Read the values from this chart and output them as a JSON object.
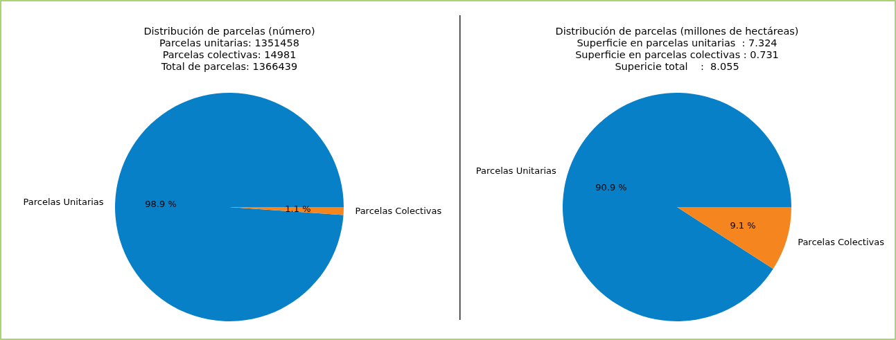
{
  "chart_data": [
    {
      "type": "pie",
      "title": "Distribución de parcelas (número)",
      "subtitle": "Parcelas unitarias: 1351458\nParcelas colectivas: 14981\nTotal de parcelas: 1366439",
      "categories": [
        "Parcelas Unitarias",
        "Parcelas Colectivas"
      ],
      "values": [
        98.9,
        1.1
      ],
      "colors": [
        "#0880c8",
        "#f5861f"
      ],
      "value_labels": [
        "98.9 %",
        "1.1 %"
      ]
    },
    {
      "type": "pie",
      "title": "Distribución de parcelas (millones de hectáreas)",
      "subtitle": "Superficie en parcelas unitarias  : 7.324\nSuperficie en parcelas colectivas : 0.731\nSupericie total    :  8.055",
      "categories": [
        "Parcelas Unitarias",
        "Parcelas Colectivas"
      ],
      "values": [
        90.9,
        9.1
      ],
      "colors": [
        "#0880c8",
        "#f5861f"
      ],
      "value_labels": [
        "90.9 %",
        "9.1 %"
      ]
    }
  ]
}
